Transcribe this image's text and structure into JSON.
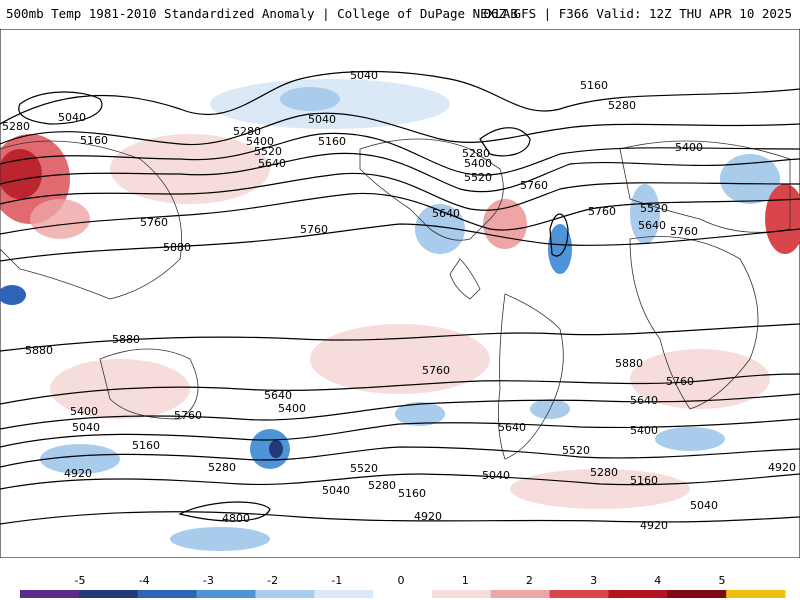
{
  "header": {
    "left": "500mb Temp 1981-2010 Standardized Anomaly | College of DuPage NEXLAB",
    "right": "06Z GFS | F366 Valid: 12Z THU APR 10 2025"
  },
  "map": {
    "contour_labels": [
      "5040",
      "5160",
      "5280",
      "5400",
      "5520",
      "5640",
      "5760",
      "5880",
      "4920",
      "4800"
    ],
    "line_color": "#000000",
    "coast_color": "#333333"
  },
  "colorbar": {
    "ticks": [
      "-5",
      "-4",
      "-3",
      "-2",
      "-1",
      "0",
      "1",
      "2",
      "3",
      "4",
      "5"
    ],
    "colors": [
      "#5b2a8a",
      "#233a78",
      "#2e63b8",
      "#4f93d8",
      "#a9cbec",
      "#dbe8f6",
      "#ffffff",
      "#f7dcdc",
      "#eea5a5",
      "#d8454b",
      "#b3141f",
      "#7d0a14",
      "#f0c010"
    ]
  }
}
